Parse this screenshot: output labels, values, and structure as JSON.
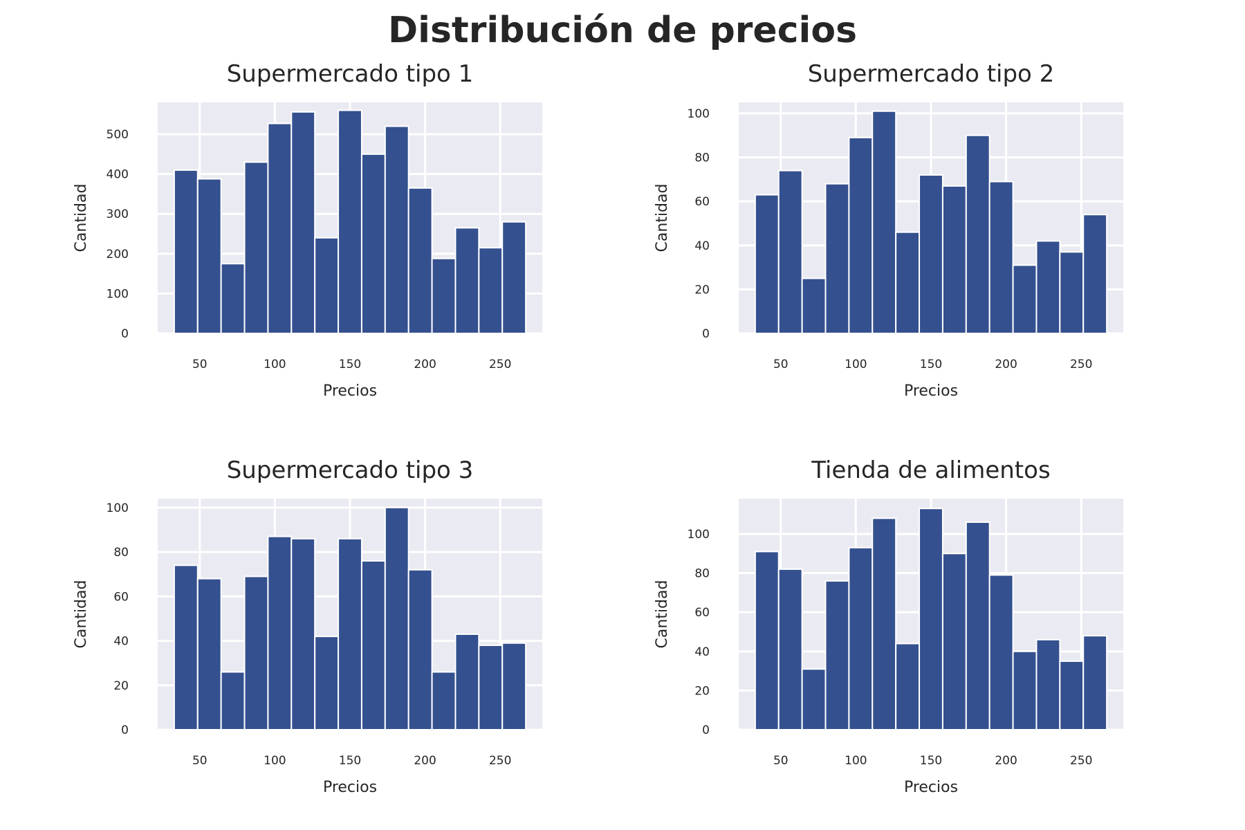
{
  "title": "Distribución de precios",
  "style": {
    "background": "#eaeaf2",
    "bar_color": "#34508f",
    "grid_color": "#ffffff"
  },
  "chart_data": [
    {
      "type": "bar",
      "title": "Supermercado tipo 1",
      "xlabel": "Precios",
      "ylabel": "Cantidad",
      "xlim": [
        22,
        278
      ],
      "ylim": [
        0,
        580
      ],
      "xticks": [
        50,
        100,
        150,
        200,
        250
      ],
      "yticks": [
        0,
        100,
        200,
        300,
        400,
        500
      ],
      "bin_edges": [
        33,
        48.6,
        64.2,
        79.8,
        95.4,
        111,
        126.6,
        142.2,
        157.8,
        173.4,
        189,
        204.6,
        220.2,
        235.8,
        251.4,
        267
      ],
      "values": [
        410,
        388,
        175,
        430,
        527,
        556,
        240,
        560,
        450,
        520,
        365,
        188,
        265,
        215,
        280
      ]
    },
    {
      "type": "bar",
      "title": "Supermercado tipo 2",
      "xlabel": "Precios",
      "ylabel": "Cantidad",
      "xlim": [
        22,
        278
      ],
      "ylim": [
        0,
        105
      ],
      "xticks": [
        50,
        100,
        150,
        200,
        250
      ],
      "yticks": [
        0,
        20,
        40,
        60,
        80,
        100
      ],
      "bin_edges": [
        33,
        48.6,
        64.2,
        79.8,
        95.4,
        111,
        126.6,
        142.2,
        157.8,
        173.4,
        189,
        204.6,
        220.2,
        235.8,
        251.4,
        267
      ],
      "values": [
        63,
        74,
        25,
        68,
        89,
        101,
        46,
        72,
        67,
        90,
        69,
        31,
        42,
        37,
        54
      ]
    },
    {
      "type": "bar",
      "title": "Supermercado tipo 3",
      "xlabel": "Precios",
      "ylabel": "Cantidad",
      "xlim": [
        22,
        278
      ],
      "ylim": [
        0,
        104
      ],
      "xticks": [
        50,
        100,
        150,
        200,
        250
      ],
      "yticks": [
        0,
        20,
        40,
        60,
        80,
        100
      ],
      "bin_edges": [
        33,
        48.6,
        64.2,
        79.8,
        95.4,
        111,
        126.6,
        142.2,
        157.8,
        173.4,
        189,
        204.6,
        220.2,
        235.8,
        251.4,
        267
      ],
      "values": [
        74,
        68,
        26,
        69,
        87,
        86,
        42,
        86,
        76,
        100,
        72,
        26,
        43,
        38,
        39
      ]
    },
    {
      "type": "bar",
      "title": "Tienda de alimentos",
      "xlabel": "Precios",
      "ylabel": "Cantidad",
      "xlim": [
        22,
        278
      ],
      "ylim": [
        0,
        118
      ],
      "xticks": [
        50,
        100,
        150,
        200,
        250
      ],
      "yticks": [
        0,
        20,
        40,
        60,
        80,
        100
      ],
      "bin_edges": [
        33,
        48.6,
        64.2,
        79.8,
        95.4,
        111,
        126.6,
        142.2,
        157.8,
        173.4,
        189,
        204.6,
        220.2,
        235.8,
        251.4,
        267
      ],
      "values": [
        91,
        82,
        31,
        76,
        93,
        108,
        44,
        113,
        90,
        106,
        79,
        40,
        46,
        35,
        48
      ]
    }
  ]
}
